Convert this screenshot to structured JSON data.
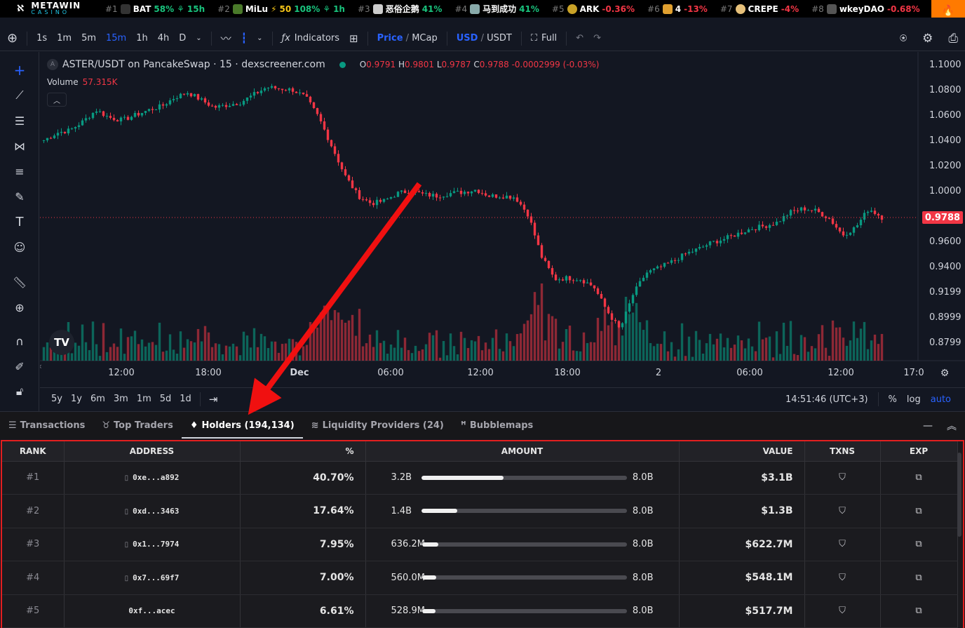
{
  "ticker": {
    "brand_top": "METAWIN",
    "brand_bottom": "CASINO",
    "items": [
      {
        "rank": "#1",
        "symbol": "BAT",
        "change": "58%",
        "extra": "15h",
        "avatar": "#333"
      },
      {
        "rank": "#2",
        "symbol": "MiLu",
        "boost": "50",
        "change": "108%",
        "extra": "1h",
        "avatar": "#4a7a2a"
      },
      {
        "rank": "#3",
        "symbol": "恶俗企鹅",
        "change": "41%",
        "avatar": "#ccc"
      },
      {
        "rank": "#4",
        "symbol": "马到成功",
        "change": "41%",
        "avatar": "#8aa"
      },
      {
        "rank": "#5",
        "symbol": "ARK",
        "change": "-0.36%",
        "avatar": "#c9a227"
      },
      {
        "rank": "#6",
        "symbol": "4",
        "change": "-13%",
        "avatar": "#e0a030"
      },
      {
        "rank": "#7",
        "symbol": "CREPE",
        "change": "-4%",
        "avatar": "#e6c07a"
      },
      {
        "rank": "#8",
        "symbol": "wkeyDAO",
        "change": "-0.68%",
        "avatar": "#555"
      }
    ]
  },
  "toolbar": {
    "intervals": [
      "1s",
      "1m",
      "5m",
      "15m",
      "1h",
      "4h",
      "D"
    ],
    "active_interval": "15m",
    "indicators": "Indicators",
    "price": "Price",
    "mcap": "MCap",
    "usd": "USD",
    "usdt": "USDT",
    "full": "Full"
  },
  "legend": {
    "pair": "ASTER/USDT on PancakeSwap · 15 · dexscreener.com",
    "o_label": "O",
    "o": "0.9791",
    "h_label": "H",
    "h": "0.9801",
    "l_label": "L",
    "l": "0.9787",
    "c_label": "C",
    "c": "0.9788",
    "change": "-0.0002999 (-0.03%)",
    "volume_label": "Volume",
    "volume": "57.315K"
  },
  "chart_data": {
    "type": "candlestick",
    "price_axis": [
      "1.1000",
      "1.0800",
      "1.0600",
      "1.0400",
      "1.0200",
      "1.0000",
      "0.9800",
      "0.9600",
      "0.9400",
      "0.9199",
      "0.8999",
      "0.8799"
    ],
    "last_price": "0.9788",
    "time_axis": [
      "12:00",
      "18:00",
      "Dec",
      "06:00",
      "12:00",
      "18:00",
      "2",
      "06:00",
      "12:00",
      "17:0"
    ],
    "close": [
      1.04,
      1.046,
      1.048,
      1.055,
      1.064,
      1.058,
      1.056,
      1.06,
      1.064,
      1.067,
      1.074,
      1.078,
      1.072,
      1.066,
      1.068,
      1.07,
      1.076,
      1.082,
      1.081,
      1.08,
      1.074,
      1.058,
      1.035,
      1.012,
      0.996,
      0.99,
      0.992,
      0.998,
      1.0,
      0.997,
      0.996,
      0.998,
      0.999,
      1.001,
      0.996,
      0.996,
      0.995,
      0.981,
      0.948,
      0.93,
      0.931,
      0.93,
      0.924,
      0.905,
      0.89,
      0.918,
      0.935,
      0.939,
      0.944,
      0.95,
      0.954,
      0.959,
      0.962,
      0.966,
      0.97,
      0.972,
      0.975,
      0.983,
      0.986,
      0.984,
      0.978,
      0.965,
      0.971,
      0.986,
      0.979
    ]
  },
  "range_bar": {
    "ranges": [
      "5y",
      "1y",
      "6m",
      "3m",
      "1m",
      "5d",
      "1d"
    ],
    "clock": "14:51:46 (UTC+3)",
    "pct": "%",
    "log": "log",
    "auto": "auto"
  },
  "tabs": {
    "transactions": "Transactions",
    "top_traders": "Top Traders",
    "holders": "Holders (194,134)",
    "liquidity": "Liquidity Providers (24)",
    "bubblemaps": "Bubblemaps"
  },
  "table": {
    "headers": {
      "rank": "RANK",
      "address": "ADDRESS",
      "pct": "%",
      "amount": "AMOUNT",
      "value": "VALUE",
      "txns": "TXNS",
      "exp": "EXP"
    },
    "rows": [
      {
        "rank": "#1",
        "address": "0xe...a892",
        "pct": "40.70%",
        "amount": "3.2B",
        "total": "8.0B",
        "fill": 0.4,
        "value": "$3.1B"
      },
      {
        "rank": "#2",
        "address": "0xd...3463",
        "pct": "17.64%",
        "amount": "1.4B",
        "total": "8.0B",
        "fill": 0.176,
        "value": "$1.3B"
      },
      {
        "rank": "#3",
        "address": "0x1...7974",
        "pct": "7.95%",
        "amount": "636.2M",
        "total": "8.0B",
        "fill": 0.0795,
        "value": "$622.7M"
      },
      {
        "rank": "#4",
        "address": "0x7...69f7",
        "pct": "7.00%",
        "amount": "560.0M",
        "total": "8.0B",
        "fill": 0.07,
        "value": "$548.1M"
      },
      {
        "rank": "#5",
        "address": "0xf...acec",
        "pct": "6.61%",
        "amount": "528.9M",
        "total": "8.0B",
        "fill": 0.066,
        "value": "$517.7M"
      }
    ]
  }
}
